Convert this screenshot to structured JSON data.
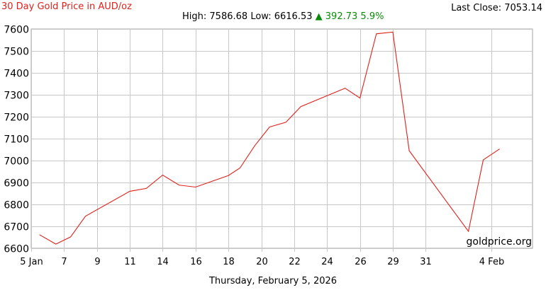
{
  "header": {
    "title": "30 Day Gold Price in AUD/oz",
    "high_label": "High:",
    "high": "7586.68",
    "low_label": "Low:",
    "low": "6616.53",
    "change_arrow": "▲",
    "change": "392.73",
    "change_pct": "5.9%",
    "last_close_label": "Last Close:",
    "last_close": "7053.14"
  },
  "watermark": "goldprice.org",
  "colors": {
    "line": "#e0211b",
    "title": "#e0211b",
    "up": "#0a8a0a",
    "grid": "#c8c8c8"
  },
  "chart_data": {
    "type": "line",
    "title": "30 Day Gold Price in AUD/oz",
    "xlabel": "Thursday, February 5, 2026",
    "ylabel": "",
    "ylim": [
      6600,
      7600
    ],
    "xlim": [
      0,
      30.5
    ],
    "grid": true,
    "yticks": [
      6600,
      6700,
      6800,
      6900,
      7000,
      7100,
      7200,
      7300,
      7400,
      7500,
      7600
    ],
    "xticks": [
      {
        "x": 0,
        "label": "5 Jan"
      },
      {
        "x": 2,
        "label": "7"
      },
      {
        "x": 4,
        "label": "9"
      },
      {
        "x": 6,
        "label": "11"
      },
      {
        "x": 8,
        "label": "14"
      },
      {
        "x": 10,
        "label": "16"
      },
      {
        "x": 12,
        "label": "18"
      },
      {
        "x": 14,
        "label": "20"
      },
      {
        "x": 16,
        "label": "22"
      },
      {
        "x": 18,
        "label": "24"
      },
      {
        "x": 20,
        "label": "26"
      },
      {
        "x": 22,
        "label": "29"
      },
      {
        "x": 24,
        "label": "31"
      },
      {
        "x": 28,
        "label": "4 Feb"
      }
    ],
    "series": [
      {
        "values": [
          [
            0.5,
            6662
          ],
          [
            1.5,
            6619
          ],
          [
            2.4,
            6652
          ],
          [
            3.3,
            6746
          ],
          [
            6.0,
            6860
          ],
          [
            7.0,
            6873
          ],
          [
            8.0,
            6934
          ],
          [
            9.0,
            6888
          ],
          [
            10.0,
            6879
          ],
          [
            12.0,
            6932
          ],
          [
            12.7,
            6966
          ],
          [
            13.6,
            7068
          ],
          [
            14.5,
            7153
          ],
          [
            15.5,
            7175
          ],
          [
            16.4,
            7246
          ],
          [
            19.1,
            7330
          ],
          [
            20.0,
            7285
          ],
          [
            21.0,
            7578
          ],
          [
            22.0,
            7586
          ],
          [
            23.0,
            7045
          ],
          [
            26.6,
            6677
          ],
          [
            27.5,
            7003
          ],
          [
            28.5,
            7053
          ]
        ]
      }
    ]
  }
}
